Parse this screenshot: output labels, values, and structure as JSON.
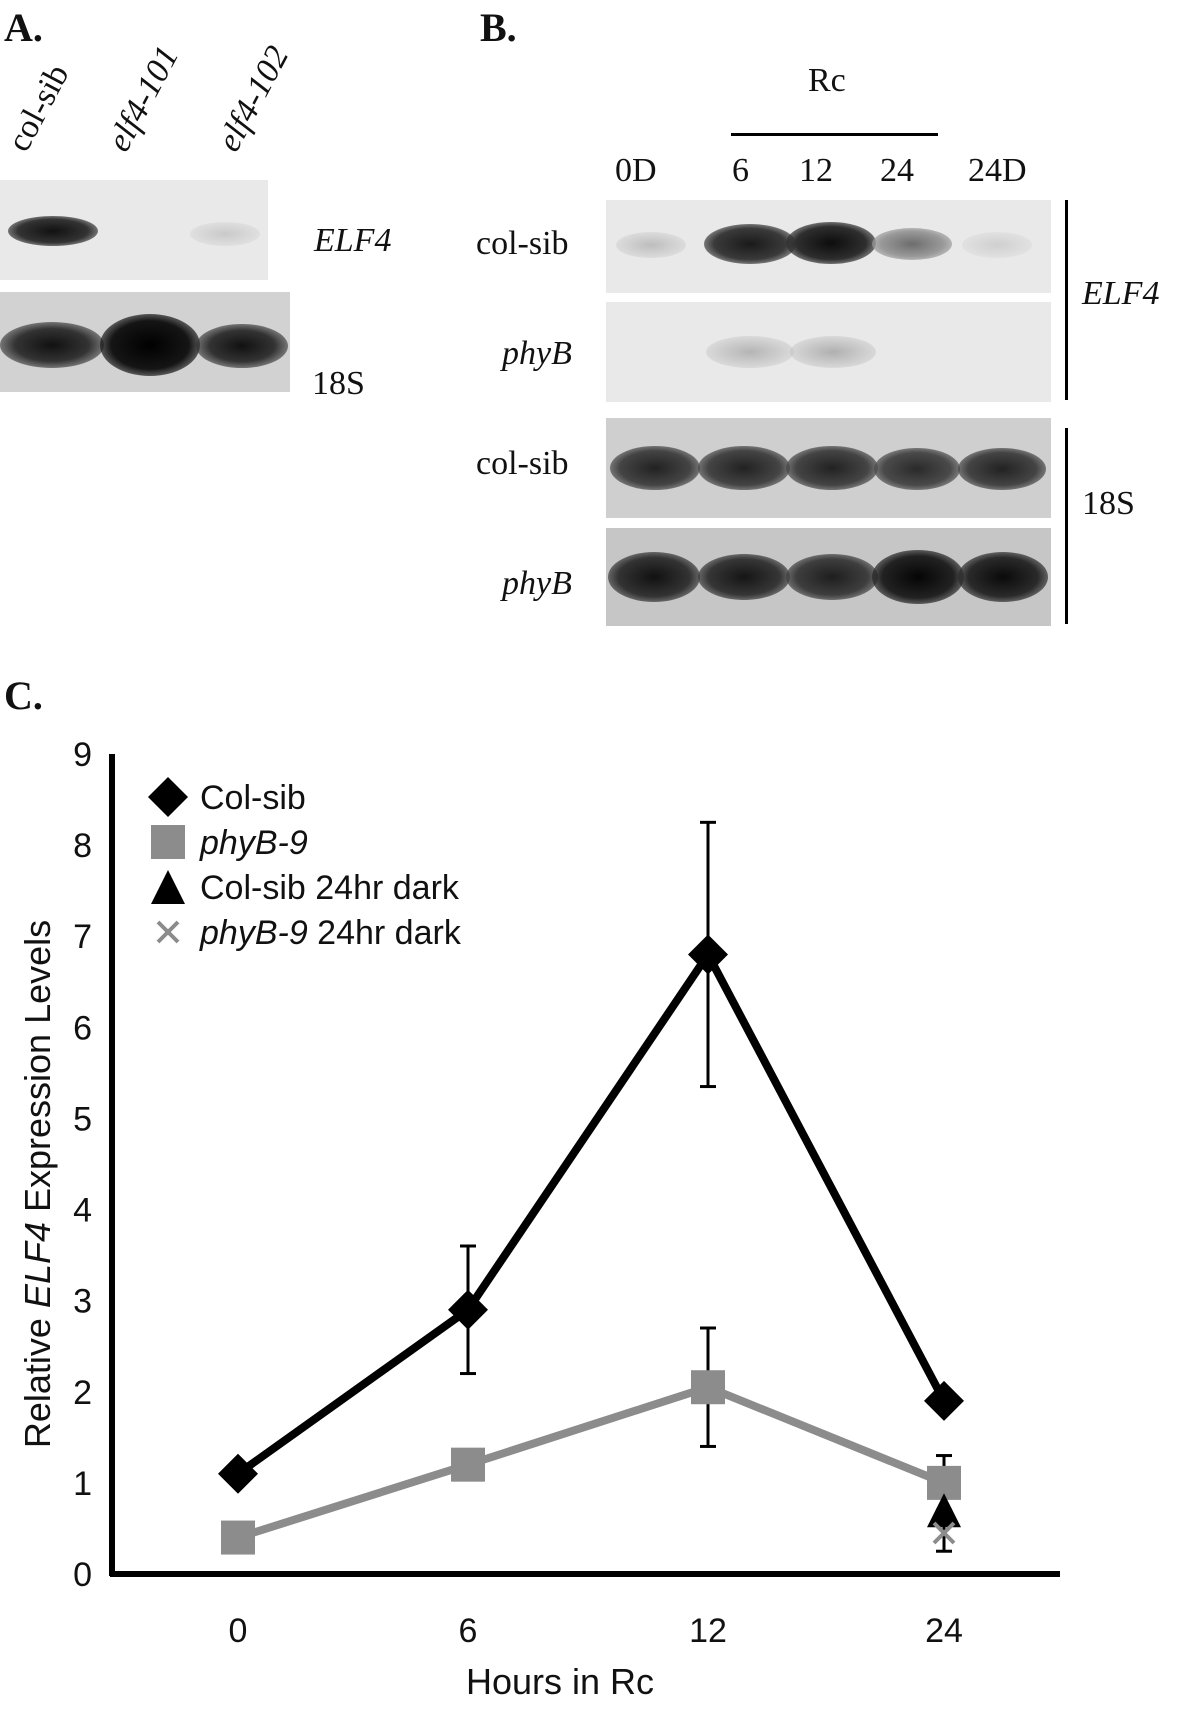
{
  "panel_a": {
    "letter": "A.",
    "lanes": [
      "col-sib",
      "elf4-101",
      "elf4-102"
    ],
    "elf4_label": "ELF4",
    "rrna_label": "18S"
  },
  "panel_b": {
    "letter": "B.",
    "rc_label": "Rc",
    "timepoints": [
      "0D",
      "6",
      "12",
      "24",
      "24D"
    ],
    "rows": [
      "col-sib",
      "phyB",
      "col-sib",
      "phyB"
    ],
    "elf4_label": "ELF4",
    "rrna_label": "18S"
  },
  "panel_c": {
    "letter": "C."
  },
  "chart_data": {
    "type": "line",
    "xlabel": "Hours in Rc",
    "ylabel_parts": [
      "Relative ",
      "ELF4",
      " Expression Levels"
    ],
    "x": [
      0,
      6,
      12,
      24
    ],
    "xticks": [
      "0",
      "6",
      "12",
      "24"
    ],
    "ylim": [
      0,
      9
    ],
    "yticks": [
      "0",
      "1",
      "2",
      "3",
      "4",
      "5",
      "6",
      "7",
      "8",
      "9"
    ],
    "grid": false,
    "legend_position": "top-left",
    "series": [
      {
        "name": "Col-sib",
        "marker": "diamond",
        "color": "#000000",
        "values": [
          1.1,
          2.9,
          6.8,
          1.9
        ],
        "errors": [
          0,
          0.7,
          1.45,
          0
        ]
      },
      {
        "name": "phyB-9",
        "marker": "square",
        "color": "#8c8c8c",
        "values": [
          0.4,
          1.2,
          2.05,
          1.0
        ],
        "errors": [
          0,
          0,
          0.65,
          0.3
        ]
      }
    ],
    "single_points": [
      {
        "name": "Col-sib 24hr dark",
        "marker": "triangle",
        "color": "#000000",
        "x": 24,
        "value": 0.7,
        "error": 0.45
      },
      {
        "name": "phyB-9 24hr dark",
        "marker": "x",
        "color": "#8c8c8c",
        "x": 24,
        "value": 0.45
      }
    ],
    "legend": [
      {
        "marker": "diamond",
        "color": "#000000",
        "parts": [
          {
            "text": "Col-sib",
            "italic": false
          }
        ]
      },
      {
        "marker": "square",
        "color": "#8c8c8c",
        "parts": [
          {
            "text": "phyB-9",
            "italic": true
          }
        ]
      },
      {
        "marker": "triangle",
        "color": "#000000",
        "parts": [
          {
            "text": "Col-sib 24hr dark",
            "italic": false
          }
        ]
      },
      {
        "marker": "x",
        "color": "#8c8c8c",
        "parts": [
          {
            "text": "phyB-9",
            "italic": true
          },
          {
            "text": " 24hr dark",
            "italic": false
          }
        ]
      }
    ]
  }
}
